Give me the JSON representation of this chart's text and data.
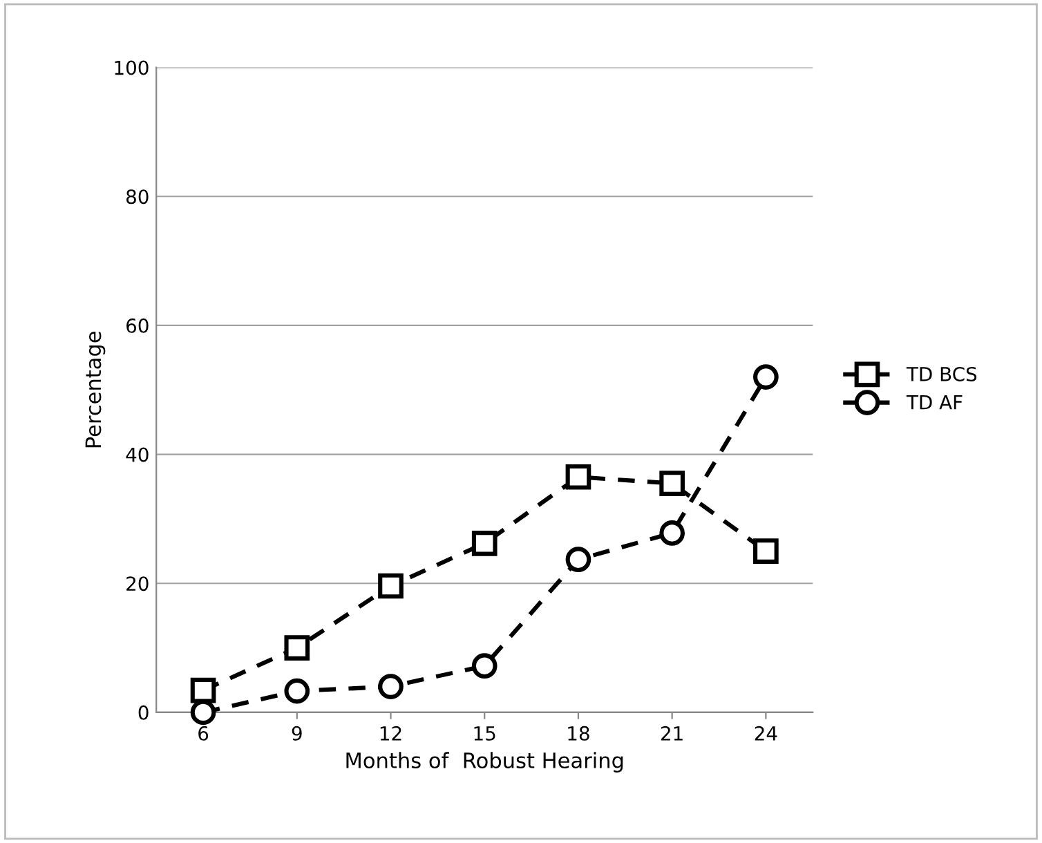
{
  "chart_data": {
    "type": "line",
    "xlabel": "Months of  Robust Hearing",
    "ylabel": "Percentage",
    "categories": [
      "6",
      "9",
      "12",
      "15",
      "18",
      "21",
      "24"
    ],
    "series": [
      {
        "name": "TD BCS",
        "color": "#000000",
        "marker": "square",
        "values": [
          3.4,
          10,
          19.6,
          26.2,
          36.5,
          35.5,
          25
        ]
      },
      {
        "name": "TD AF",
        "color": "#000000",
        "marker": "circle",
        "values": [
          0,
          3.3,
          4,
          7.2,
          23.7,
          27.8,
          52
        ]
      }
    ],
    "ylim": [
      0,
      100
    ],
    "yticks": [
      0,
      20,
      40,
      60,
      80,
      100
    ],
    "grid": "y",
    "legend": "right",
    "line_style": "dashed"
  }
}
